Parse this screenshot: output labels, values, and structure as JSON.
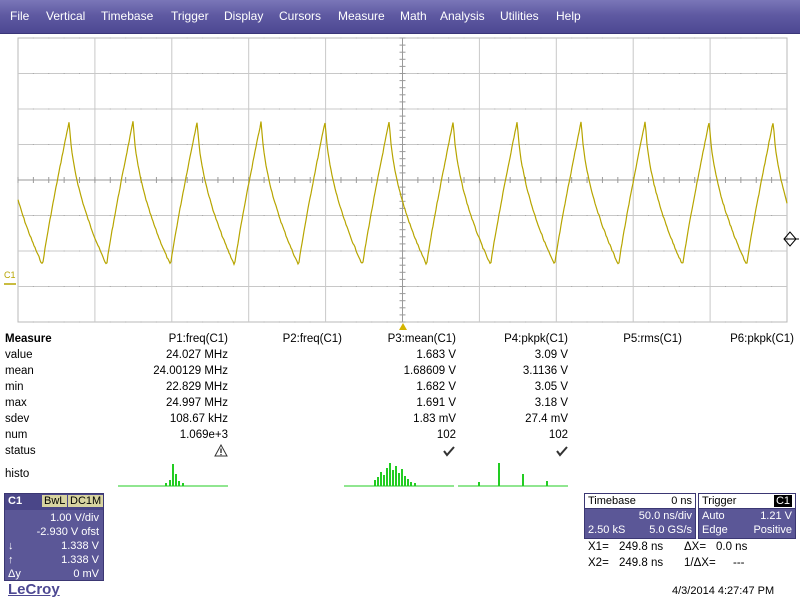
{
  "menu": {
    "items": [
      "File",
      "Vertical",
      "Timebase",
      "Trigger",
      "Display",
      "Cursors",
      "Measure",
      "Math",
      "Analysis",
      "Utilities",
      "Help"
    ]
  },
  "waveform": {
    "channel_label": "C1",
    "trace_color": "#b7a500",
    "period_ns": 41.62,
    "levels_div": {
      "low": -2.4,
      "high": 1.7,
      "trace_offset": -0.2
    }
  },
  "measure": {
    "title": "Measure",
    "columns": [
      "P1:freq(C1)",
      "P2:freq(C1)",
      "P3:mean(C1)",
      "P4:pkpk(C1)",
      "P5:rms(C1)",
      "P6:pkpk(C1)"
    ],
    "rows": [
      {
        "label": "value",
        "p1": "24.027 MHz",
        "p3": "1.683 V",
        "p4": "3.09 V"
      },
      {
        "label": "mean",
        "p1": "24.00129 MHz",
        "p3": "1.68609 V",
        "p4": "3.1136 V"
      },
      {
        "label": "min",
        "p1": "22.829 MHz",
        "p3": "1.682 V",
        "p4": "3.05 V"
      },
      {
        "label": "max",
        "p1": "24.997 MHz",
        "p3": "1.691 V",
        "p4": "3.18 V"
      },
      {
        "label": "sdev",
        "p1": "108.67 kHz",
        "p3": "1.83 mV",
        "p4": "27.4 mV"
      },
      {
        "label": "num",
        "p1": "1.069e+3",
        "p3": "102",
        "p4": "102"
      },
      {
        "label": "status",
        "p1": "",
        "p3": "",
        "p4": ""
      }
    ],
    "histo_label": "histo",
    "histo_color": "#22cc22"
  },
  "channel": {
    "name": "C1",
    "badges": [
      "BwL",
      "DC1M"
    ],
    "vdiv": "1.00 V/div",
    "offset": "-2.930 V ofst",
    "cursor1": "1.338 V",
    "cursor2": "1.338 V",
    "delta_label": "Δy",
    "delta": "0 mV"
  },
  "timebase": {
    "title": "Timebase",
    "delay": "0 ns",
    "tdiv": "50.0 ns/div",
    "samples": "2.50 kS",
    "rate": "5.0 GS/s"
  },
  "trigger": {
    "title": "Trigger",
    "source": "C1",
    "mode": "Auto",
    "level": "1.21 V",
    "type": "Edge",
    "slope": "Positive"
  },
  "cursors": {
    "x1_label": "X1=",
    "x1": "249.8 ns",
    "dx_label": "ΔX=",
    "dx": "0.0 ns",
    "x2_label": "X2=",
    "x2": "249.8 ns",
    "inv_dx_label": "1/ΔX=",
    "inv_dx": "---"
  },
  "footer": {
    "logo": "LeCroy",
    "datetime": "4/3/2014 4:27:47 PM"
  }
}
